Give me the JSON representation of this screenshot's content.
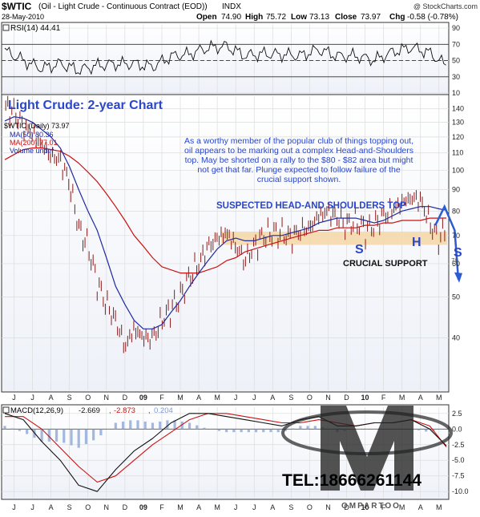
{
  "header": {
    "symbol": "$WTIC",
    "name": "(Oil - Light Crude - Continuous Contract (EOD))",
    "exchange": "INDX",
    "copyright": "@ StockCharts.com",
    "date": "28-May-2010",
    "open_label": "Open",
    "open": "74.90",
    "high_label": "High",
    "high": "75.72",
    "low_label": "Low",
    "low": "73.13",
    "close_label": "Close",
    "close": "73.97",
    "chg_label": "Chg",
    "chg": "-0.58 (-0.78%)"
  },
  "colors": {
    "price_bars": "#8b1a1a",
    "ma50": "#1f2aa0",
    "ma200": "#cc1111",
    "annotation_text": "#2b46c8",
    "support_band": "#f6d7a6",
    "macd_line": "#111111",
    "macd_signal": "#cc1111",
    "histogram": "#7f9ad1",
    "projection": "#2b5dd1"
  },
  "rsi_panel": {
    "legend": "RSI(14) 44.41",
    "overbought": 70,
    "oversold": 30
  },
  "price_panel": {
    "chart_title": "Light Crude: 2-year Chart",
    "legend_symbol": "$WTIC (Daily) 73.97",
    "legend_ma50": "MA(50) 80.36",
    "legend_ma200": "MA(200) 77.01",
    "legend_volume": "Volume undef",
    "commentary_lines": [
      "As a worthy member of the popular club of things topping out,",
      "oil appears to be marking out a complex Head-and-Shoulders",
      "top. May be shorted on a rally to the $80 - $82 area but might",
      "not get that far. Plunge expected to follow failure of the",
      "crucial support shown."
    ],
    "pattern_label": "SUSPECTED HEAD-AND SHOULDERS TOP",
    "support_label": "CRUCIAL SUPPORT",
    "support_value": "70",
    "marker_s1": "S",
    "marker_h": "H",
    "marker_s2": "S"
  },
  "macd_panel": {
    "legend_macd": "MACD(12,26,9)",
    "macd_value": "-2.669",
    "signal_value": "-2.873",
    "hist_value": "0.204"
  },
  "watermark": {
    "phone": "TEL:18666261144",
    "brand": "OMPARTOO"
  },
  "x_axis": {
    "labels": [
      "J",
      "J",
      "A",
      "S",
      "O",
      "N",
      "D",
      "09",
      "F",
      "M",
      "A",
      "M",
      "J",
      "J",
      "A",
      "S",
      "O",
      "N",
      "D",
      "10",
      "F",
      "M",
      "A",
      "M"
    ]
  },
  "chart_data": [
    {
      "type": "line",
      "title": "RSI(14) 44.41",
      "ylim": [
        10,
        95
      ],
      "yticks": [
        10,
        30,
        50,
        70,
        90
      ],
      "x_months": [
        0,
        1,
        2,
        3,
        4,
        5,
        6,
        7,
        8,
        9,
        10,
        11,
        12,
        13,
        14,
        15,
        16,
        17,
        18,
        19,
        20,
        21,
        22,
        23,
        23.9
      ],
      "series": [
        {
          "name": "RSI(14)",
          "values": [
            62,
            52,
            42,
            46,
            36,
            42,
            46,
            48,
            44,
            55,
            56,
            64,
            68,
            58,
            60,
            57,
            54,
            62,
            56,
            58,
            52,
            60,
            64,
            58,
            44
          ]
        }
      ],
      "reference_lines": [
        30,
        50,
        70
      ]
    },
    {
      "type": "line",
      "title": "Light Crude: 2-year Chart",
      "ylim": [
        30,
        150
      ],
      "log_scale": true,
      "yticks": [
        40,
        50,
        60,
        70,
        80,
        90,
        100,
        110,
        120,
        130,
        140
      ],
      "x_months": [
        0,
        0.5,
        1,
        1.5,
        2,
        2.5,
        3,
        3.5,
        4,
        4.5,
        5,
        5.5,
        6,
        6.5,
        7,
        7.5,
        8,
        8.5,
        9,
        9.5,
        10,
        10.5,
        11,
        11.5,
        12,
        12.5,
        13,
        13.5,
        14,
        14.5,
        15,
        15.5,
        16,
        16.5,
        17,
        17.5,
        18,
        18.5,
        19,
        19.5,
        20,
        20.5,
        21,
        21.5,
        22,
        22.5,
        23,
        23.5,
        23.9
      ],
      "series": [
        {
          "name": "$WTIC (Daily) 73.97",
          "values": [
            140,
            138,
            127,
            122,
            115,
            108,
            106,
            93,
            73,
            66,
            54,
            48,
            44,
            38,
            42,
            40,
            40,
            44,
            47,
            50,
            56,
            60,
            66,
            69,
            71,
            66,
            61,
            66,
            70,
            71,
            71,
            69,
            72,
            73,
            78,
            80,
            77,
            74,
            76,
            72,
            74,
            78,
            81,
            84,
            86,
            85,
            75,
            68,
            73.97
          ]
        },
        {
          "name": "MA(50) 80.36",
          "values": [
            131,
            134,
            133,
            130,
            125,
            120,
            113,
            102,
            90,
            80,
            72,
            62,
            53,
            48,
            44,
            42,
            42,
            43,
            46,
            49,
            53,
            57,
            61,
            65,
            68,
            69,
            68,
            68,
            69,
            70,
            70,
            71,
            72,
            73,
            75,
            76,
            77,
            77,
            77,
            76,
            75,
            76,
            78,
            80,
            81,
            82,
            82,
            81,
            80.36
          ]
        },
        {
          "name": "MA(200) 77.01",
          "values": [
            106,
            109,
            112,
            113,
            113,
            112,
            111,
            108,
            104,
            99,
            94,
            88,
            82,
            76,
            70,
            66,
            62,
            59,
            58,
            57,
            57,
            57,
            58,
            59,
            61,
            62,
            64,
            65,
            66,
            67,
            68,
            69,
            70,
            71,
            72,
            72,
            73,
            73,
            73,
            74,
            74,
            75,
            75,
            76,
            76,
            76,
            77,
            77,
            77.01
          ]
        }
      ],
      "support_band": [
        66.5,
        71.5
      ],
      "projection": [
        73.97,
        82,
        72,
        55
      ]
    },
    {
      "type": "line",
      "title": "MACD(12,26,9) -2.669, -2.873, 0.204",
      "ylim": [
        -11,
        3.5
      ],
      "yticks": [
        -10.0,
        -7.5,
        -5.0,
        -2.5,
        0.0,
        2.5
      ],
      "x_months": [
        0,
        1,
        2,
        3,
        4,
        5,
        6,
        7,
        8,
        9,
        10,
        11,
        12,
        13,
        14,
        15,
        16,
        17,
        18,
        19,
        20,
        21,
        22,
        23,
        23.9
      ],
      "series": [
        {
          "name": "MACD",
          "values": [
            2.5,
            1.5,
            -2,
            -5,
            -9,
            -10,
            -6.5,
            -3.5,
            -1.5,
            1,
            2.5,
            2.5,
            2,
            1.5,
            1,
            0.5,
            1.5,
            2,
            0.5,
            0.5,
            1,
            1,
            1.5,
            0,
            -2.669
          ]
        },
        {
          "name": "Signal",
          "values": [
            2,
            2,
            0,
            -3,
            -6,
            -8.5,
            -7.5,
            -5,
            -2.5,
            -0.5,
            1.5,
            2.5,
            2.5,
            2,
            1.5,
            1,
            1,
            1.5,
            1,
            0.5,
            1,
            1,
            1.5,
            0.5,
            -2.873
          ]
        },
        {
          "name": "Histogram",
          "values": [
            0.5,
            -0.5,
            -2,
            -2,
            -3,
            -1.5,
            1,
            1.5,
            1,
            1.5,
            1,
            0,
            -0.5,
            -0.5,
            -0.5,
            -0.5,
            0.5,
            0.5,
            -0.5,
            0,
            0,
            0,
            0,
            -0.5,
            0.204
          ]
        }
      ]
    }
  ]
}
